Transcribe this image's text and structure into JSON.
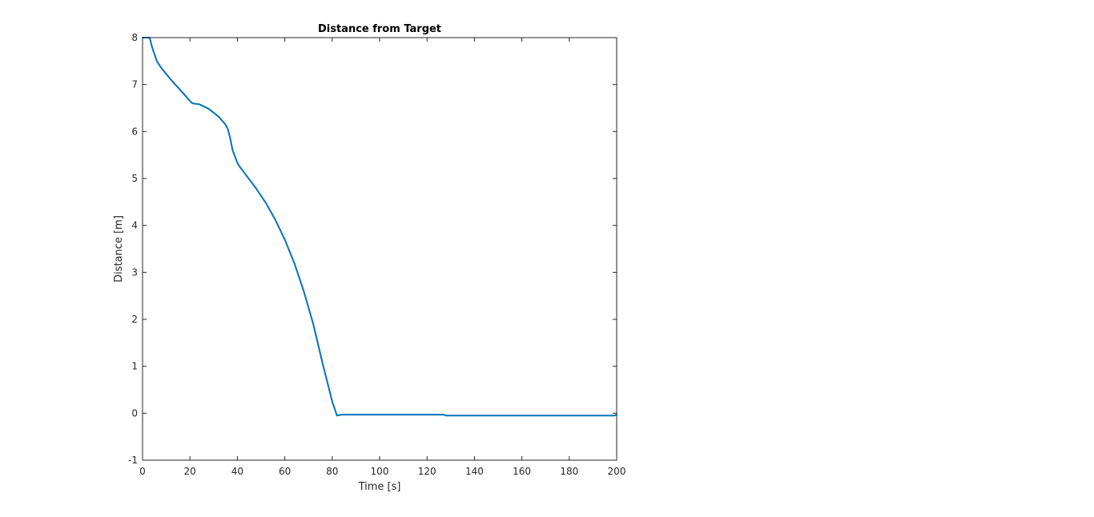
{
  "chart_data": {
    "type": "line",
    "title": "Distance from Target",
    "xlabel": "Time [s]",
    "ylabel": "Distance [m]",
    "xlim": [
      0,
      200
    ],
    "ylim": [
      -1,
      8
    ],
    "xticks": [
      0,
      20,
      40,
      60,
      80,
      100,
      120,
      140,
      160,
      180,
      200
    ],
    "yticks": [
      -1,
      0,
      1,
      2,
      3,
      4,
      5,
      6,
      7,
      8
    ],
    "grid": false,
    "box": true,
    "series": [
      {
        "color": "#0072BD",
        "x": [
          0,
          3,
          4,
          6,
          8,
          12,
          16,
          20,
          21,
          24,
          28,
          32,
          35,
          36,
          37,
          38,
          40,
          41,
          44,
          48,
          52,
          56,
          60,
          64,
          68,
          72,
          76,
          80,
          82,
          84,
          86,
          100,
          120,
          127,
          128,
          140,
          160,
          180,
          199,
          200
        ],
        "y": [
          8.0,
          8.0,
          7.8,
          7.5,
          7.35,
          7.1,
          6.88,
          6.65,
          6.6,
          6.58,
          6.48,
          6.32,
          6.15,
          6.05,
          5.85,
          5.6,
          5.33,
          5.25,
          5.05,
          4.78,
          4.48,
          4.12,
          3.7,
          3.2,
          2.6,
          1.9,
          1.05,
          0.25,
          -0.05,
          -0.03,
          -0.03,
          -0.03,
          -0.03,
          -0.03,
          -0.05,
          -0.05,
          -0.05,
          -0.05,
          -0.05,
          -0.03
        ]
      }
    ]
  }
}
